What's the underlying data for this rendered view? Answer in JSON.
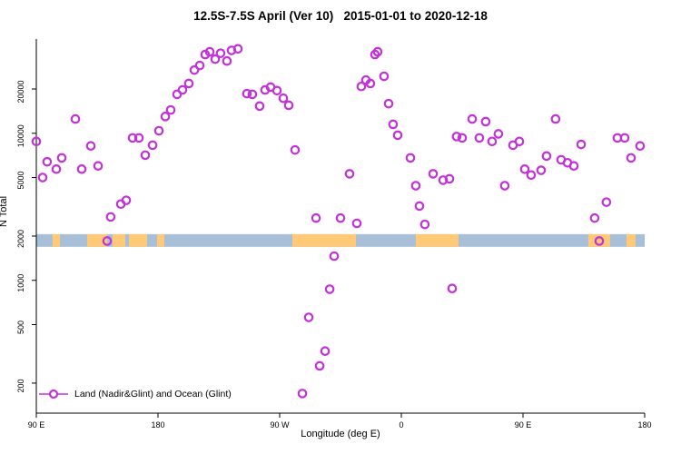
{
  "title": "12.5S-7.5S April (Ver 10)   2015-01-01 to 2020-12-18",
  "legend": {
    "label": "Land (Nadir&Glint) and Ocean (Glint)"
  },
  "colors": {
    "point": "#C232D8",
    "ocean_band": "#A8BFD8",
    "land_band": "#FFC978",
    "axis": "#000000"
  },
  "chart_data": {
    "type": "scatter",
    "title": "12.5S-7.5S April (Ver 10)   2015-01-01 to 2020-12-18",
    "xlabel": "Longitude (deg E)",
    "ylabel": "N Total",
    "x_axis_wraps": "90E eastward through 180, 90W, 0, back to 180",
    "x_range": [
      90,
      540
    ],
    "y_scale": "log",
    "y_range": [
      125,
      42500
    ],
    "x_ticks": [
      {
        "value": 90,
        "label": "90 E"
      },
      {
        "value": 180,
        "label": "180"
      },
      {
        "value": 270,
        "label": "90 W"
      },
      {
        "value": 360,
        "label": "0"
      },
      {
        "value": 450,
        "label": "90 E"
      },
      {
        "value": 540,
        "label": "180"
      }
    ],
    "y_ticks": [
      {
        "value": 200,
        "label": "200"
      },
      {
        "value": 500,
        "label": "500"
      },
      {
        "value": 1000,
        "label": "1000"
      },
      {
        "value": 2000,
        "label": "2000"
      },
      {
        "value": 5000,
        "label": "5000"
      },
      {
        "value": 10000,
        "label": "10000"
      },
      {
        "value": 20000,
        "label": "20000"
      }
    ],
    "map_band": {
      "description": "strip of world map for latitude band 12.5S-7.5S drawn across plot near N=2000",
      "value_top": 2060,
      "value_bottom": 1690,
      "land_segments_lon": [
        [
          102,
          107.5
        ],
        [
          127.6,
          142.4
        ],
        [
          146.4,
          155.8
        ],
        [
          158.5,
          171.9
        ],
        [
          179.3,
          184.7
        ],
        [
          279.4,
          326.4
        ],
        [
          370.7,
          402.3
        ],
        [
          498.3,
          514.4
        ],
        [
          526.5,
          533.2
        ]
      ]
    },
    "points": [
      [
        90,
        8800
      ],
      [
        94.7,
        5000
      ],
      [
        98,
        6400
      ],
      [
        104.8,
        5700
      ],
      [
        108.8,
        6800
      ],
      [
        118.9,
        12500
      ],
      [
        123.6,
        5700
      ],
      [
        130.3,
        8200
      ],
      [
        135.7,
        6000
      ],
      [
        142.4,
        1850
      ],
      [
        145,
        2700
      ],
      [
        152.5,
        3300
      ],
      [
        156.5,
        3500
      ],
      [
        161.2,
        9300
      ],
      [
        165.9,
        9300
      ],
      [
        170.6,
        7100
      ],
      [
        176,
        8300
      ],
      [
        180.7,
        10400
      ],
      [
        185.4,
        13000
      ],
      [
        189.4,
        14400
      ],
      [
        194.1,
        18400
      ],
      [
        198.1,
        19700
      ],
      [
        202.8,
        21800
      ],
      [
        206.9,
        26900
      ],
      [
        210.9,
        28900
      ],
      [
        214.9,
        34300
      ],
      [
        218.3,
        35800
      ],
      [
        222.3,
        31900
      ],
      [
        226.3,
        35000
      ],
      [
        231,
        31000
      ],
      [
        234.4,
        36600
      ],
      [
        239.1,
        37500
      ],
      [
        245.8,
        18600
      ],
      [
        249.8,
        18400
      ],
      [
        255.2,
        15300
      ],
      [
        259.2,
        19700
      ],
      [
        263.3,
        20600
      ],
      [
        268,
        19500
      ],
      [
        272.7,
        17300
      ],
      [
        276.7,
        15500
      ],
      [
        281.4,
        7700
      ],
      [
        286.8,
        170
      ],
      [
        291.5,
        560
      ],
      [
        296.9,
        2650
      ],
      [
        299.6,
        262
      ],
      [
        303.6,
        330
      ],
      [
        307,
        870
      ],
      [
        310.3,
        1460
      ],
      [
        315,
        2650
      ],
      [
        321.7,
        5300
      ],
      [
        327.1,
        2440
      ],
      [
        330.4,
        20800
      ],
      [
        333.8,
        23000
      ],
      [
        337.1,
        21800
      ],
      [
        340.5,
        34300
      ],
      [
        342.5,
        35800
      ],
      [
        347.2,
        24400
      ],
      [
        350.6,
        15900
      ],
      [
        353.9,
        11500
      ],
      [
        357.3,
        9700
      ],
      [
        366.7,
        6800
      ],
      [
        370.7,
        4400
      ],
      [
        373.4,
        3200
      ],
      [
        377.4,
        2400
      ],
      [
        383.5,
        5300
      ],
      [
        390.9,
        4800
      ],
      [
        395.6,
        4900
      ],
      [
        397.6,
        880
      ],
      [
        400.9,
        9500
      ],
      [
        405,
        9300
      ],
      [
        412.4,
        12500
      ],
      [
        417.7,
        9300
      ],
      [
        422.4,
        12000
      ],
      [
        427.1,
        8800
      ],
      [
        431.8,
        9900
      ],
      [
        436.5,
        4400
      ],
      [
        442.6,
        8300
      ],
      [
        447.3,
        8800
      ],
      [
        451.3,
        5700
      ],
      [
        456,
        5200
      ],
      [
        463.4,
        5600
      ],
      [
        467.4,
        7000
      ],
      [
        474.1,
        12500
      ],
      [
        478.2,
        6600
      ],
      [
        482.9,
        6300
      ],
      [
        487.6,
        6000
      ],
      [
        493,
        8400
      ],
      [
        503,
        2650
      ],
      [
        506.4,
        1850
      ],
      [
        511.7,
        3400
      ],
      [
        519.8,
        9300
      ],
      [
        525.2,
        9300
      ],
      [
        529.9,
        6800
      ],
      [
        536.6,
        8200
      ]
    ]
  }
}
